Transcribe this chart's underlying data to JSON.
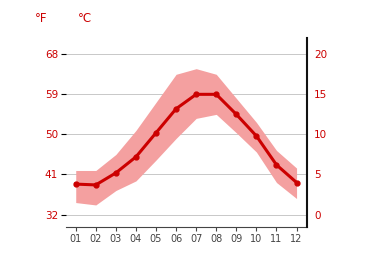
{
  "months": [
    1,
    2,
    3,
    4,
    5,
    6,
    7,
    8,
    9,
    10,
    11,
    12
  ],
  "month_labels": [
    "01",
    "02",
    "03",
    "04",
    "05",
    "06",
    "07",
    "08",
    "09",
    "10",
    "11",
    "12"
  ],
  "avg_c": [
    3.8,
    3.7,
    5.2,
    7.2,
    10.2,
    13.2,
    15.0,
    15.0,
    12.5,
    9.8,
    6.2,
    4.0
  ],
  "band_upper_c": [
    5.5,
    5.5,
    7.5,
    10.5,
    14.0,
    17.5,
    18.2,
    17.5,
    14.5,
    11.5,
    8.0,
    5.8
  ],
  "band_lower_c": [
    1.5,
    1.2,
    3.0,
    4.2,
    6.8,
    9.5,
    12.0,
    12.5,
    10.2,
    7.8,
    4.0,
    2.0
  ],
  "line_color": "#cc0000",
  "band_color": "#f4a0a0",
  "left_ticks_f": [
    32,
    41,
    50,
    59,
    68
  ],
  "right_ticks_c": [
    0,
    5,
    10,
    15,
    20
  ],
  "ylim_c": [
    -1.5,
    22
  ],
  "xlim": [
    0.5,
    12.5
  ],
  "label_color": "#cc0000",
  "background_color": "#ffffff",
  "grid_color": "#c8c8c8",
  "tick_color": "#444444",
  "label_f": "°F",
  "label_c": "°C"
}
